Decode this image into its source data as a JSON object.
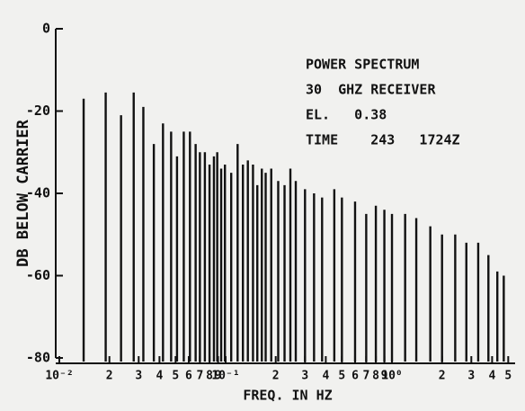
{
  "chart_data": {
    "type": "spectrum",
    "ylabel": "DB BELOW CARRIER",
    "xlabel": "FREQ. IN HZ",
    "annotations": [
      "POWER SPECTRUM",
      "30  GHZ RECEIVER",
      "EL.   0.38",
      "TIME    243   1724Z"
    ],
    "log_x": true,
    "color": "#111111",
    "xlim": [
      0.01,
      5.5
    ],
    "ylim": [
      -80,
      0
    ],
    "yticks": [
      0,
      -20,
      -40,
      -60,
      -80
    ],
    "xticks": [
      {
        "value": 0.01,
        "label": "10⁻²"
      },
      {
        "value": 0.02,
        "label": "2"
      },
      {
        "value": 0.03,
        "label": "3"
      },
      {
        "value": 0.04,
        "label": "4"
      },
      {
        "value": 0.05,
        "label": "5"
      },
      {
        "value": 0.06,
        "label": "6"
      },
      {
        "value": 0.07,
        "label": "7"
      },
      {
        "value": 0.08,
        "label": "8"
      },
      {
        "value": 0.09,
        "label": "9"
      },
      {
        "value": 0.1,
        "label": "10⁻¹"
      },
      {
        "value": 0.2,
        "label": "2"
      },
      {
        "value": 0.3,
        "label": "3"
      },
      {
        "value": 0.4,
        "label": "4"
      },
      {
        "value": 0.5,
        "label": "5"
      },
      {
        "value": 0.6,
        "label": "6"
      },
      {
        "value": 0.7,
        "label": "7"
      },
      {
        "value": 0.8,
        "label": "8"
      },
      {
        "value": 0.9,
        "label": "9"
      },
      {
        "value": 1,
        "label": "10⁰"
      },
      {
        "value": 2,
        "label": "2"
      },
      {
        "value": 3,
        "label": "3"
      },
      {
        "value": 4,
        "label": "4"
      },
      {
        "value": 5,
        "label": "5"
      }
    ],
    "x": [
      0.014,
      0.019,
      0.0235,
      0.028,
      0.032,
      0.037,
      0.042,
      0.047,
      0.051,
      0.056,
      0.061,
      0.066,
      0.07,
      0.075,
      0.08,
      0.085,
      0.089,
      0.094,
      0.099,
      0.108,
      0.118,
      0.127,
      0.136,
      0.146,
      0.155,
      0.165,
      0.174,
      0.188,
      0.207,
      0.226,
      0.245,
      0.264,
      0.3,
      0.34,
      0.38,
      0.45,
      0.5,
      0.6,
      0.7,
      0.8,
      0.9,
      1.0,
      1.2,
      1.4,
      1.7,
      2.0,
      2.4,
      2.8,
      3.3,
      3.8,
      4.3,
      4.7
    ],
    "values": [
      -17,
      -15.5,
      -21,
      -15.5,
      -19,
      -28,
      -23,
      -25,
      -31,
      -25,
      -25,
      -28,
      -30,
      -30,
      -33,
      -31,
      -30,
      -34,
      -33,
      -35,
      -28,
      -33,
      -32,
      -33,
      -38,
      -34,
      -35,
      -34,
      -37,
      -38,
      -34,
      -37,
      -39,
      -40,
      -41,
      -39,
      -41,
      -42,
      -45,
      -43,
      -44,
      -45,
      -45,
      -46,
      -48,
      -50,
      -50,
      -52,
      -52,
      -55,
      -59,
      -60
    ]
  }
}
